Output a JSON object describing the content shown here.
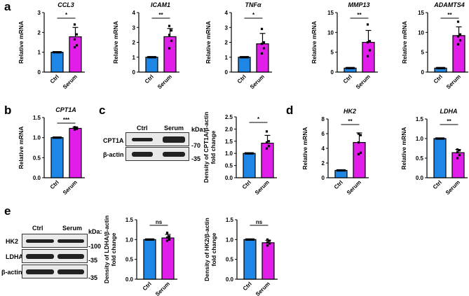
{
  "panel_letters": [
    "a",
    "b",
    "c",
    "d",
    "e"
  ],
  "colors": {
    "ctrl": "#1e87e6",
    "serum": "#e11ee9"
  },
  "blot_c": {
    "lanes": [
      "Ctrl",
      "Serum"
    ],
    "kda": "kDa:",
    "rows": [
      {
        "label": "CPT1A",
        "marker": "-70"
      },
      {
        "label": "β-actin",
        "marker": "-35"
      }
    ]
  },
  "blot_e": {
    "lanes": [
      "Ctrl",
      "Serum"
    ],
    "kda": "kDa:",
    "rows": [
      {
        "label": "HK2",
        "marker": "-100"
      },
      {
        "label": "LDHA",
        "marker": "-35"
      },
      {
        "label": "β-actin",
        "marker": "-35"
      }
    ]
  },
  "chart_data": [
    {
      "type": "bar",
      "title": "CCL3",
      "ylabel": [
        "Relative mRNA"
      ],
      "categories": [
        "Ctrl",
        "Serum"
      ],
      "values": [
        1,
        1.78
      ],
      "errors": [
        0,
        0.47
      ],
      "points": [
        [
          1,
          1,
          1,
          1,
          1
        ],
        [
          1.25,
          1.35,
          1.65,
          1.9,
          2.4
        ]
      ],
      "sig": "*",
      "ylim": [
        0,
        3
      ],
      "ticks": [
        0,
        1,
        2,
        3
      ],
      "tick_labels": [
        "0",
        "1",
        "2",
        "3"
      ]
    },
    {
      "type": "bar",
      "title": "ICAM1",
      "ylabel": [
        "Relative mRNA"
      ],
      "categories": [
        "Ctrl",
        "Serum"
      ],
      "values": [
        1,
        2.38
      ],
      "errors": [
        0,
        0.55
      ],
      "points": [
        [
          1,
          1,
          1,
          1,
          1
        ],
        [
          1.6,
          2.1,
          2.5,
          2.8,
          3.1
        ]
      ],
      "sig": "**",
      "ylim": [
        0,
        4
      ],
      "ticks": [
        0,
        1,
        2,
        3,
        4
      ],
      "tick_labels": [
        "0",
        "1",
        "2",
        "3",
        "4"
      ]
    },
    {
      "type": "bar",
      "title": "TNFα",
      "ylabel": [
        "Relative mRNA"
      ],
      "categories": [
        "Ctrl",
        "Serum"
      ],
      "values": [
        1,
        1.9
      ],
      "errors": [
        0,
        0.7
      ],
      "points": [
        [
          1,
          1,
          1,
          1,
          1
        ],
        [
          1.25,
          1.6,
          1.9,
          2.0,
          2.9
        ]
      ],
      "sig": "*",
      "ylim": [
        0,
        4
      ],
      "ticks": [
        0,
        1,
        2,
        3,
        4
      ],
      "tick_labels": [
        "0",
        "1",
        "2",
        "3",
        "4"
      ]
    },
    {
      "type": "bar",
      "title": "MMP13",
      "ylabel": [
        "Relative mRNA"
      ],
      "categories": [
        "Ctrl",
        "Serum"
      ],
      "values": [
        1,
        7.5
      ],
      "errors": [
        0,
        3.0
      ],
      "points": [
        [
          1,
          1,
          1,
          1,
          1
        ],
        [
          4,
          5.5,
          7.5,
          7.8,
          12
        ]
      ],
      "sig": "**",
      "ylim": [
        0,
        15
      ],
      "ticks": [
        0,
        5,
        10,
        15
      ],
      "tick_labels": [
        "0",
        "5",
        "10",
        "15"
      ]
    },
    {
      "type": "bar",
      "title": "ADAMTS4",
      "ylabel": [
        "Relative mRNA"
      ],
      "categories": [
        "Ctrl",
        "Serum"
      ],
      "values": [
        1,
        9.2
      ],
      "errors": [
        0,
        2.2
      ],
      "points": [
        [
          1,
          1,
          1,
          1,
          1
        ],
        [
          7,
          8,
          9,
          9.5,
          12.7
        ]
      ],
      "sig": "**",
      "ylim": [
        0,
        15
      ],
      "ticks": [
        0,
        5,
        10,
        15
      ],
      "tick_labels": [
        "0",
        "5",
        "10",
        "15"
      ]
    },
    {
      "type": "bar",
      "title": "CPT1A",
      "ylabel": [
        "Relative mRNA"
      ],
      "categories": [
        "Ctrl",
        "Serum"
      ],
      "values": [
        1,
        1.23
      ],
      "errors": [
        0,
        0.03
      ],
      "points": [
        [
          1,
          1,
          1,
          1,
          1
        ],
        [
          1.2,
          1.22,
          1.24,
          1.25,
          1.26
        ]
      ],
      "sig": "***",
      "ylim": [
        0,
        1.5
      ],
      "ticks": [
        0,
        0.5,
        1,
        1.5
      ],
      "tick_labels": [
        "0.0",
        "0.5",
        "1.0",
        "1.5"
      ]
    },
    {
      "type": "bar",
      "title": "",
      "ylabel": [
        "Density of CPT1A/β-actin",
        "fold change"
      ],
      "categories": [
        "Ctrl",
        "Serum"
      ],
      "values": [
        1,
        1.42
      ],
      "errors": [
        0,
        0.32
      ],
      "points": [
        [
          1,
          1,
          1,
          1,
          1
        ],
        [
          1.2,
          1.3,
          1.45,
          1.5,
          1.9
        ]
      ],
      "sig": "*",
      "ylim": [
        0,
        2.5
      ],
      "ticks": [
        0,
        0.5,
        1,
        1.5,
        2,
        2.5
      ],
      "tick_labels": [
        "0.0",
        "0.5",
        "1.0",
        "1.5",
        "2.0",
        "2.5"
      ]
    },
    {
      "type": "bar",
      "title": "HK2",
      "ylabel": [
        "Relative mRNA"
      ],
      "categories": [
        "Ctrl",
        "Serum"
      ],
      "values": [
        1,
        4.8
      ],
      "errors": [
        0,
        1.3
      ],
      "points": [
        [
          1,
          1,
          1,
          1,
          1
        ],
        [
          3.2,
          3.4,
          4.8,
          5.8,
          6.0
        ]
      ],
      "sig": "**",
      "ylim": [
        0,
        8
      ],
      "ticks": [
        0,
        2,
        4,
        6,
        8
      ],
      "tick_labels": [
        "0",
        "2",
        "4",
        "6",
        "8"
      ]
    },
    {
      "type": "bar",
      "title": "LDHA",
      "ylabel": [
        "Relative mRNA"
      ],
      "categories": [
        "Ctrl",
        "Serum"
      ],
      "values": [
        1,
        0.64
      ],
      "errors": [
        0,
        0.08
      ],
      "points": [
        [
          1,
          1,
          1,
          1,
          1
        ],
        [
          0.5,
          0.58,
          0.65,
          0.7,
          0.72
        ]
      ],
      "sig": "**",
      "ylim": [
        0,
        1.5
      ],
      "ticks": [
        0,
        0.5,
        1,
        1.5
      ],
      "tick_labels": [
        "0.0",
        "0.5",
        "1.0",
        "1.5"
      ]
    },
    {
      "type": "bar",
      "title": "",
      "ylabel": [
        "Density of LDHA/β-actin",
        "fold change"
      ],
      "categories": [
        "Ctrl",
        "Serum"
      ],
      "values": [
        1,
        1.04
      ],
      "errors": [
        0,
        0.09
      ],
      "points": [
        [
          1,
          1,
          1,
          1,
          1
        ],
        [
          0.97,
          1.0,
          1.05,
          1.08,
          1.17
        ]
      ],
      "sig": "ns",
      "ylim": [
        0,
        1.5
      ],
      "ticks": [
        0,
        0.5,
        1,
        1.5
      ],
      "tick_labels": [
        "0.0",
        "0.5",
        "1.0",
        "1.5"
      ]
    },
    {
      "type": "bar",
      "title": "",
      "ylabel": [
        "Density of HK2/β-actin",
        "fold change"
      ],
      "categories": [
        "Ctrl",
        "Serum"
      ],
      "values": [
        1,
        0.92
      ],
      "errors": [
        0,
        0.06
      ],
      "points": [
        [
          1,
          1,
          1,
          1,
          1
        ],
        [
          0.85,
          0.9,
          0.93,
          0.97,
          1.0
        ]
      ],
      "sig": "ns",
      "ylim": [
        0,
        1.5
      ],
      "ticks": [
        0,
        0.5,
        1,
        1.5
      ],
      "tick_labels": [
        "0.0",
        "0.5",
        "1.0",
        "1.5"
      ]
    }
  ]
}
